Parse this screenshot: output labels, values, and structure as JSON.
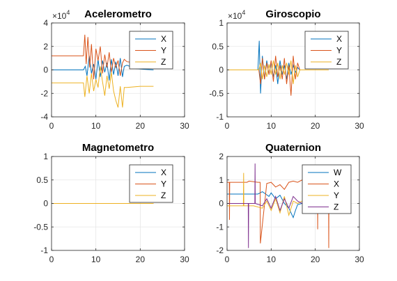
{
  "chart_data": [
    {
      "type": "line",
      "title": "Acelerometro",
      "xlabel": "",
      "ylabel": "",
      "xlim": [
        0,
        30
      ],
      "ylim": [
        -4,
        4
      ],
      "xticks": [
        "0",
        "10",
        "20",
        "30"
      ],
      "yticks": [
        "-4",
        "-2",
        "0",
        "2",
        "4"
      ],
      "y_exponent": "×10",
      "y_exponent_power": "4",
      "grid": true,
      "legend_position": "top-right",
      "series": [
        {
          "name": "X",
          "color": "#0072BD",
          "x": [
            0,
            7.2,
            7.6,
            8.0,
            8.5,
            9.0,
            9.5,
            10.0,
            10.5,
            11.0,
            11.5,
            12.0,
            12.5,
            13.0,
            13.5,
            14.0,
            14.5,
            15.0,
            15.5,
            16.0,
            16.4,
            17.0,
            19.0,
            23.0
          ],
          "y": [
            0.0,
            0.0,
            0.3,
            -0.5,
            1.2,
            -0.3,
            0.5,
            -0.8,
            0.9,
            -0.6,
            0.8,
            -0.2,
            0.6,
            -0.9,
            0.9,
            -0.4,
            0.7,
            -0.5,
            1.0,
            -0.6,
            0.3,
            0.4,
            0.1,
            0.0
          ]
        },
        {
          "name": "Y",
          "color": "#D95319",
          "x": [
            0,
            7.2,
            7.5,
            7.8,
            8.2,
            8.6,
            9.0,
            9.5,
            10.0,
            10.5,
            11.0,
            11.5,
            12.0,
            12.5,
            13.0,
            13.5,
            14.0,
            14.5,
            15.0,
            15.5,
            16.0,
            16.4,
            17.0,
            19.0
          ],
          "y": [
            1.2,
            1.2,
            3.0,
            0.5,
            2.8,
            0.2,
            2.2,
            -0.8,
            1.8,
            0.8,
            2.0,
            -0.3,
            1.3,
            0.2,
            1.5,
            -0.2,
            1.0,
            0.2,
            0.8,
            -0.5,
            0.6,
            0.9,
            0.7,
            0.6
          ]
        },
        {
          "name": "Z",
          "color": "#EDB120",
          "x": [
            0,
            7.2,
            7.5,
            8.0,
            8.5,
            9.0,
            9.5,
            10.0,
            10.5,
            11.0,
            11.5,
            12.0,
            12.5,
            13.0,
            13.5,
            14.0,
            14.5,
            15.0,
            15.5,
            16.0,
            16.4,
            17.0,
            20.0,
            23.0
          ],
          "y": [
            -1.1,
            -1.1,
            -2.3,
            -0.5,
            -2.0,
            -0.3,
            -1.8,
            -0.8,
            -1.5,
            0.3,
            -1.0,
            -2.2,
            -0.5,
            -1.6,
            -0.2,
            -1.8,
            -2.6,
            -3.2,
            -1.4,
            -3.2,
            -1.5,
            -1.5,
            -1.4,
            -1.4
          ]
        }
      ]
    },
    {
      "type": "line",
      "title": "Giroscopio",
      "xlabel": "",
      "ylabel": "",
      "xlim": [
        0,
        30
      ],
      "ylim": [
        -1,
        1
      ],
      "xticks": [
        "0",
        "10",
        "20",
        "30"
      ],
      "yticks": [
        "-1",
        "-0.5",
        "0",
        "0.5",
        "1"
      ],
      "y_exponent": "×10",
      "y_exponent_power": "4",
      "grid": true,
      "legend_position": "top-right",
      "series": [
        {
          "name": "X",
          "color": "#0072BD",
          "x": [
            0,
            7.0,
            7.3,
            7.6,
            8.0,
            8.5,
            9.0,
            9.5,
            10.0,
            10.5,
            11.0,
            11.5,
            12.0,
            12.5,
            13.0,
            13.5,
            14.0,
            14.5,
            15.0,
            15.5,
            16.0,
            16.5,
            23.0
          ],
          "y": [
            0.0,
            0.0,
            0.62,
            -0.5,
            0.3,
            -0.2,
            0.2,
            -0.1,
            0.15,
            -0.15,
            0.1,
            -0.3,
            0.2,
            -0.1,
            0.1,
            -0.2,
            0.15,
            -0.1,
            0.1,
            -0.05,
            0.05,
            0.0,
            0.0
          ]
        },
        {
          "name": "Y",
          "color": "#D95319",
          "x": [
            0,
            7.2,
            7.6,
            8.0,
            8.5,
            9.0,
            9.5,
            10.0,
            10.5,
            11.0,
            11.5,
            12.0,
            12.5,
            13.0,
            13.5,
            14.0,
            14.5,
            15.0,
            15.5,
            16.0,
            16.5,
            23.0
          ],
          "y": [
            0.0,
            0.0,
            -0.3,
            0.25,
            -0.2,
            0.15,
            -0.1,
            0.2,
            -0.25,
            0.3,
            -0.15,
            0.1,
            -0.2,
            0.25,
            -0.3,
            0.1,
            -0.55,
            0.3,
            -0.2,
            0.15,
            0.0,
            0.0
          ]
        },
        {
          "name": "Z",
          "color": "#EDB120",
          "x": [
            0,
            7.2,
            7.6,
            8.0,
            8.5,
            9.0,
            9.5,
            10.0,
            10.5,
            11.0,
            11.5,
            12.0,
            12.5,
            13.0,
            13.5,
            14.0,
            14.5,
            15.0,
            15.5,
            16.0,
            16.5,
            23.0
          ],
          "y": [
            0.0,
            0.0,
            0.15,
            -0.2,
            0.1,
            -0.15,
            0.12,
            -0.1,
            0.2,
            -0.1,
            0.15,
            -0.2,
            0.1,
            -0.1,
            0.15,
            -0.1,
            0.2,
            -0.3,
            0.1,
            -0.15,
            0.0,
            0.0
          ]
        }
      ]
    },
    {
      "type": "line",
      "title": "Magnetometro",
      "xlabel": "",
      "ylabel": "",
      "xlim": [
        0,
        30
      ],
      "ylim": [
        -1,
        1
      ],
      "xticks": [
        "0",
        "10",
        "20",
        "30"
      ],
      "yticks": [
        "-1",
        "-0.5",
        "0",
        "0.5",
        "1"
      ],
      "grid": true,
      "legend_position": "top-right",
      "series": [
        {
          "name": "X",
          "color": "#0072BD",
          "x": [
            0,
            23.0
          ],
          "y": [
            0.0,
            0.0
          ]
        },
        {
          "name": "Y",
          "color": "#D95319",
          "x": [
            0,
            23.0
          ],
          "y": [
            0.0,
            0.0
          ]
        },
        {
          "name": "Z",
          "color": "#EDB120",
          "x": [
            0,
            23.0
          ],
          "y": [
            0.0,
            0.0
          ]
        }
      ]
    },
    {
      "type": "line",
      "title": "Quaternion",
      "xlabel": "",
      "ylabel": "",
      "xlim": [
        0,
        30
      ],
      "ylim": [
        -2,
        2
      ],
      "xticks": [
        "0",
        "10",
        "20",
        "30"
      ],
      "yticks": [
        "-2",
        "-1",
        "0",
        "1",
        "2"
      ],
      "grid": true,
      "legend_position": "top-right",
      "series": [
        {
          "name": "W",
          "color": "#0072BD",
          "x": [
            0,
            3.0,
            3.05,
            4.8,
            4.85,
            7.0,
            8.0,
            9.5,
            10.0,
            11.0,
            12.0,
            13.0,
            14.0,
            14.5,
            15.0,
            15.5,
            16.0,
            17.0,
            19.0,
            23.0
          ],
          "y": [
            0.4,
            0.4,
            0.4,
            0.4,
            0.4,
            0.4,
            0.5,
            0.3,
            0.45,
            0.2,
            0.35,
            0.0,
            -0.2,
            -0.4,
            -0.6,
            -0.3,
            -0.05,
            0.0,
            0.0,
            0.0
          ]
        },
        {
          "name": "X",
          "color": "#D95319",
          "x": [
            0,
            0.5,
            0.55,
            0.6,
            4.5,
            5.0,
            7.0,
            7.5,
            7.55,
            9.0,
            10.0,
            11.0,
            12.0,
            13.0,
            14.0,
            15.0,
            16.0,
            17.0,
            19.0,
            20.5,
            20.55,
            20.6,
            23.0,
            23.05,
            23.1,
            26.0
          ],
          "y": [
            0.9,
            0.9,
            -0.7,
            0.9,
            0.9,
            0.95,
            0.9,
            0.9,
            -1.7,
            0.85,
            0.9,
            0.7,
            0.8,
            0.6,
            0.9,
            0.95,
            0.9,
            1.0,
            0.95,
            0.95,
            -1.1,
            0.95,
            1.0,
            -1.9,
            1.0,
            1.0
          ]
        },
        {
          "name": "Y",
          "color": "#EDB120",
          "x": [
            0,
            2.0,
            3.7,
            3.75,
            3.8,
            6.0,
            8.0,
            9.0,
            10.0,
            11.0,
            12.0,
            13.0,
            14.0,
            15.0,
            16.0,
            17.0,
            19.0,
            23.0
          ],
          "y": [
            -0.1,
            -0.1,
            -0.1,
            1.3,
            -0.1,
            -0.1,
            -0.2,
            0.1,
            -0.3,
            0.2,
            -0.4,
            0.3,
            -0.5,
            0.1,
            0.0,
            0.1,
            0.0,
            0.0
          ]
        },
        {
          "name": "Z",
          "color": "#7E2F8E",
          "x": [
            0,
            2.0,
            4.8,
            4.85,
            4.9,
            6.3,
            6.35,
            6.4,
            8.0,
            9.0,
            10.0,
            11.0,
            12.0,
            13.0,
            14.0,
            15.0,
            16.0,
            17.0,
            19.0,
            23.0
          ],
          "y": [
            0.0,
            0.0,
            0.0,
            -1.9,
            0.0,
            0.0,
            1.7,
            0.0,
            -0.1,
            0.2,
            -0.2,
            0.3,
            -0.3,
            0.2,
            -0.2,
            0.3,
            0.1,
            0.0,
            0.0,
            0.0
          ]
        }
      ]
    }
  ]
}
